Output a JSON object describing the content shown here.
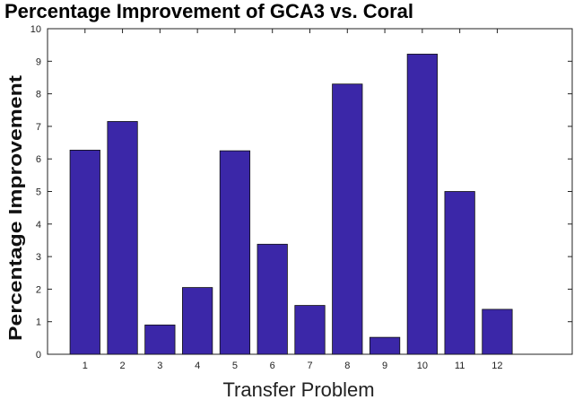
{
  "chart_data": {
    "type": "bar",
    "title": "Percentage Improvement of GCA3 vs. Coral",
    "xlabel": "Transfer Problem",
    "ylabel": "Percentage Improvement",
    "categories": [
      "1",
      "2",
      "3",
      "4",
      "5",
      "6",
      "7",
      "8",
      "9",
      "10",
      "11",
      "12"
    ],
    "values": [
      6.27,
      7.15,
      0.9,
      2.05,
      6.25,
      3.38,
      1.5,
      8.3,
      0.52,
      9.22,
      5.0,
      1.38
    ],
    "xlim": [
      0,
      14
    ],
    "ylim": [
      0,
      10
    ],
    "yticks": [
      "0",
      "1",
      "2",
      "3",
      "4",
      "5",
      "6",
      "7",
      "8",
      "9",
      "10"
    ],
    "grid": false,
    "bar_color": "#3b27a8"
  }
}
